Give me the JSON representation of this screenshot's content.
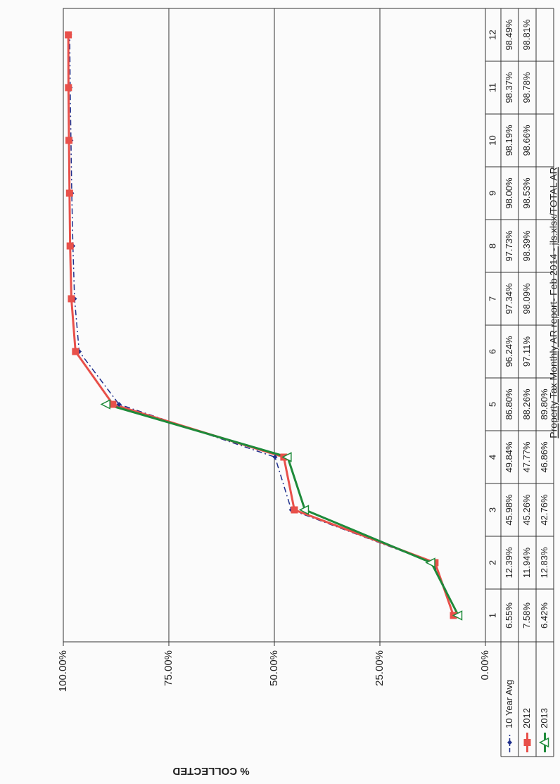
{
  "chart_data": {
    "type": "line",
    "y_label": "% COLLECTED",
    "footer": "Property Tax Monthly AR report- Feb 2014 - jls.xlsx/TOTAL AR",
    "categories": [
      "1",
      "2",
      "3",
      "4",
      "5",
      "6",
      "7",
      "8",
      "9",
      "10",
      "11",
      "12"
    ],
    "ylim": [
      0,
      100
    ],
    "yticks": [
      {
        "value": 0,
        "label": "0.00%"
      },
      {
        "value": 25,
        "label": "25.00%"
      },
      {
        "value": 50,
        "label": "50.00%"
      },
      {
        "value": 75,
        "label": "75.00%"
      },
      {
        "value": 100,
        "label": "100.00%"
      }
    ],
    "grid": true,
    "series": [
      {
        "name": "10 Year Avg",
        "color": "#1f2f8c",
        "marker": "diamond",
        "dash": true,
        "values": [
          6.55,
          12.39,
          45.98,
          49.84,
          86.8,
          96.24,
          97.34,
          97.73,
          98.0,
          98.19,
          98.37,
          98.49
        ],
        "value_labels": [
          "6.55%",
          "12.39%",
          "45.98%",
          "49.84%",
          "86.80%",
          "96.24%",
          "97.34%",
          "97.73%",
          "98.00%",
          "98.19%",
          "98.37%",
          "98.49%"
        ]
      },
      {
        "name": "2012",
        "color": "#e8504a",
        "marker": "square",
        "dash": false,
        "values": [
          7.58,
          11.94,
          45.26,
          47.77,
          88.26,
          97.11,
          98.09,
          98.39,
          98.53,
          98.66,
          98.78,
          98.81
        ],
        "value_labels": [
          "7.58%",
          "11.94%",
          "45.26%",
          "47.77%",
          "88.26%",
          "97.11%",
          "98.09%",
          "98.39%",
          "98.53%",
          "98.66%",
          "98.78%",
          "98.81%"
        ]
      },
      {
        "name": "2013",
        "color": "#1e8a3a",
        "marker": "triangle",
        "dash": false,
        "values": [
          6.42,
          12.83,
          42.76,
          46.86,
          89.8,
          null,
          null,
          null,
          null,
          null,
          null,
          null
        ],
        "value_labels": [
          "6.42%",
          "12.83%",
          "42.76%",
          "46.86%",
          "89.80%",
          null,
          null,
          null,
          null,
          null,
          null,
          null
        ]
      }
    ]
  }
}
